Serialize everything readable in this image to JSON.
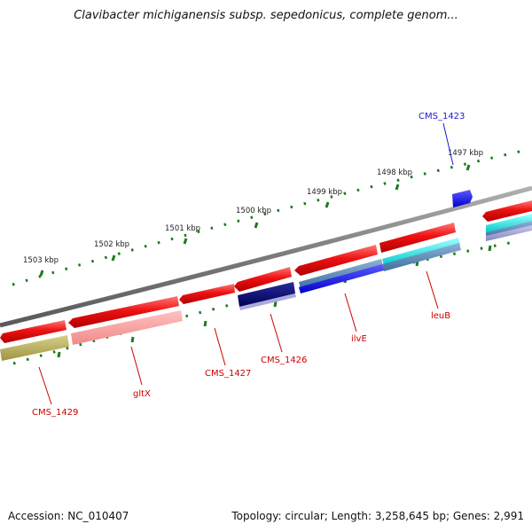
{
  "title": "Clavibacter michiganensis subsp. sepedonicus, complete genom...",
  "footer": {
    "accession": "Accession: NC_010407",
    "summary": "Topology: circular; Length: 3,258,645 bp; Genes: 2,991"
  },
  "colors": {
    "backbone": "#7a7a7a",
    "ticks": "#1f7a1f",
    "forward_cds": "#ee1111",
    "reverse_cds": "#ee1111",
    "label_red": "#cc0000",
    "label_blue": "#0000cc"
  },
  "ruler_labels": [
    "1497 kbp",
    "1498 kbp",
    "1499 kbp",
    "1500 kbp",
    "1501 kbp",
    "1502 kbp",
    "1503 kbp"
  ],
  "gene_labels": [
    {
      "text": "CMS_1423",
      "color": "#1a1acc"
    },
    {
      "text": "leuB",
      "color": "#cc0000"
    },
    {
      "text": "ilvE",
      "color": "#cc0000"
    },
    {
      "text": "CMS_1426",
      "color": "#cc0000"
    },
    {
      "text": "CMS_1427",
      "color": "#cc0000"
    },
    {
      "text": "gltX",
      "color": "#cc0000"
    },
    {
      "text": "CMS_1429",
      "color": "#cc0000"
    }
  ]
}
